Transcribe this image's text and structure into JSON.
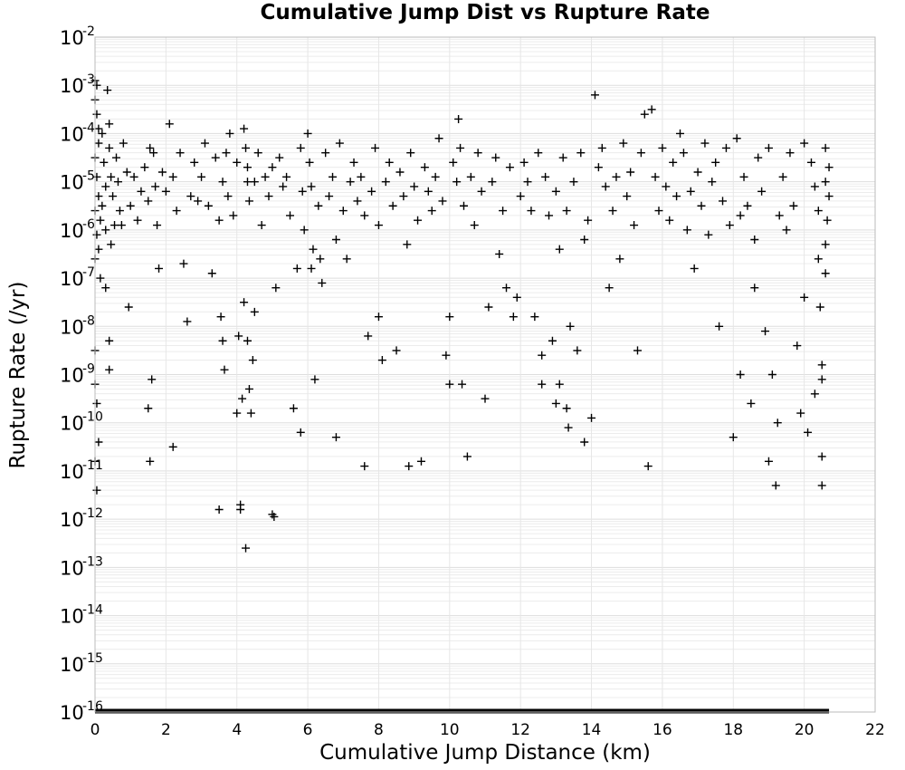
{
  "chart_data": {
    "type": "scatter",
    "title": "Cumulative Jump Dist vs Rupture Rate",
    "xlabel": "Cumulative Jump Distance (km)",
    "ylabel": "Rupture Rate (/yr)",
    "xlim": [
      0,
      22
    ],
    "ylim_log10": [
      -16,
      -2
    ],
    "y_scale": "log",
    "grid": true,
    "marker": "plus",
    "marker_color": "#000000",
    "x_ticks": [
      "0",
      "2",
      "4",
      "6",
      "8",
      "10",
      "12",
      "14",
      "16",
      "18",
      "20",
      "22"
    ],
    "y_ticks": [
      {
        "base": "10",
        "exp": "-2"
      },
      {
        "base": "10",
        "exp": "-3"
      },
      {
        "base": "10",
        "exp": "-4"
      },
      {
        "base": "10",
        "exp": "-5"
      },
      {
        "base": "10",
        "exp": "-6"
      },
      {
        "base": "10",
        "exp": "-7"
      },
      {
        "base": "10",
        "exp": "-8"
      },
      {
        "base": "10",
        "exp": "-9"
      },
      {
        "base": "10",
        "exp": "-10"
      },
      {
        "base": "10",
        "exp": "-11"
      },
      {
        "base": "10",
        "exp": "-12"
      },
      {
        "base": "10",
        "exp": "-13"
      },
      {
        "base": "10",
        "exp": "-14"
      },
      {
        "base": "10",
        "exp": "-15"
      },
      {
        "base": "10",
        "exp": "-16"
      }
    ],
    "floor_band": {
      "y_log10": -16,
      "x_range": [
        0,
        20.7
      ],
      "note": "dense row of points at the minimum rate"
    },
    "points_log10": [
      [
        0.0,
        -2.9
      ],
      [
        0.0,
        -3.3
      ],
      [
        0.05,
        -3.0
      ],
      [
        0.05,
        -3.6
      ],
      [
        0.1,
        -3.9
      ],
      [
        0.1,
        -4.2
      ],
      [
        0.0,
        -4.5
      ],
      [
        0.05,
        -4.9
      ],
      [
        0.1,
        -5.3
      ],
      [
        0.0,
        -5.6
      ],
      [
        0.15,
        -5.8
      ],
      [
        0.05,
        -6.1
      ],
      [
        0.1,
        -6.4
      ],
      [
        0.0,
        -6.6
      ],
      [
        0.2,
        -4.0
      ],
      [
        0.25,
        -4.6
      ],
      [
        0.3,
        -5.1
      ],
      [
        0.2,
        -5.5
      ],
      [
        0.3,
        -6.0
      ],
      [
        0.15,
        -7.0
      ],
      [
        0.0,
        -8.5
      ],
      [
        0.0,
        -9.2
      ],
      [
        0.05,
        -9.6
      ],
      [
        0.1,
        -10.4
      ],
      [
        0.0,
        -10.8
      ],
      [
        0.05,
        -11.4
      ],
      [
        0.35,
        -3.1
      ],
      [
        0.4,
        -3.8
      ],
      [
        0.4,
        -4.3
      ],
      [
        0.45,
        -4.9
      ],
      [
        0.5,
        -5.3
      ],
      [
        0.55,
        -5.9
      ],
      [
        0.45,
        -6.3
      ],
      [
        0.3,
        -7.2
      ],
      [
        0.4,
        -8.3
      ],
      [
        0.4,
        -8.9
      ],
      [
        0.6,
        -4.5
      ],
      [
        0.65,
        -5.0
      ],
      [
        0.7,
        -5.6
      ],
      [
        0.75,
        -5.9
      ],
      [
        0.8,
        -4.2
      ],
      [
        0.9,
        -4.8
      ],
      [
        0.95,
        -7.6
      ],
      [
        1.0,
        -5.5
      ],
      [
        1.1,
        -4.9
      ],
      [
        1.2,
        -5.8
      ],
      [
        1.3,
        -5.2
      ],
      [
        1.4,
        -4.7
      ],
      [
        1.5,
        -5.4
      ],
      [
        1.55,
        -4.3
      ],
      [
        1.6,
        -9.1
      ],
      [
        1.5,
        -9.7
      ],
      [
        1.55,
        -10.8
      ],
      [
        1.65,
        -4.4
      ],
      [
        1.7,
        -5.1
      ],
      [
        1.75,
        -5.9
      ],
      [
        1.8,
        -6.8
      ],
      [
        1.9,
        -4.8
      ],
      [
        2.0,
        -5.2
      ],
      [
        2.1,
        -3.8
      ],
      [
        2.2,
        -4.9
      ],
      [
        2.3,
        -5.6
      ],
      [
        2.4,
        -4.4
      ],
      [
        2.5,
        -6.7
      ],
      [
        2.6,
        -7.9
      ],
      [
        2.7,
        -5.3
      ],
      [
        2.8,
        -4.6
      ],
      [
        2.2,
        -10.5
      ],
      [
        2.9,
        -5.4
      ],
      [
        3.0,
        -4.9
      ],
      [
        3.1,
        -4.2
      ],
      [
        3.2,
        -5.5
      ],
      [
        3.3,
        -6.9
      ],
      [
        3.4,
        -4.5
      ],
      [
        3.5,
        -5.8
      ],
      [
        3.6,
        -5.0
      ],
      [
        3.5,
        -11.8
      ],
      [
        3.55,
        -7.8
      ],
      [
        3.6,
        -8.3
      ],
      [
        3.65,
        -8.9
      ],
      [
        3.7,
        -4.4
      ],
      [
        3.75,
        -5.3
      ],
      [
        3.8,
        -4.0
      ],
      [
        3.9,
        -5.7
      ],
      [
        4.0,
        -4.6
      ],
      [
        4.0,
        -9.8
      ],
      [
        4.05,
        -8.2
      ],
      [
        4.1,
        -11.8
      ],
      [
        4.1,
        -11.7
      ],
      [
        4.15,
        -9.5
      ],
      [
        4.2,
        -3.9
      ],
      [
        4.25,
        -4.3
      ],
      [
        4.3,
        -4.7
      ],
      [
        4.3,
        -5.0
      ],
      [
        4.35,
        -5.4
      ],
      [
        4.2,
        -7.5
      ],
      [
        4.3,
        -8.3
      ],
      [
        4.35,
        -9.3
      ],
      [
        4.4,
        -9.8
      ],
      [
        4.45,
        -8.7
      ],
      [
        4.5,
        -7.7
      ],
      [
        4.25,
        -12.6
      ],
      [
        4.5,
        -5.0
      ],
      [
        4.6,
        -4.4
      ],
      [
        4.7,
        -5.9
      ],
      [
        4.8,
        -4.9
      ],
      [
        4.9,
        -5.3
      ],
      [
        5.0,
        -4.7
      ],
      [
        5.0,
        -11.9
      ],
      [
        5.05,
        -11.95
      ],
      [
        5.1,
        -7.2
      ],
      [
        5.2,
        -4.5
      ],
      [
        5.3,
        -5.1
      ],
      [
        5.4,
        -4.9
      ],
      [
        5.5,
        -5.7
      ],
      [
        5.6,
        -9.7
      ],
      [
        5.7,
        -6.8
      ],
      [
        5.8,
        -4.3
      ],
      [
        5.85,
        -5.2
      ],
      [
        5.8,
        -10.2
      ],
      [
        5.9,
        -6.0
      ],
      [
        6.0,
        -4.0
      ],
      [
        6.05,
        -4.6
      ],
      [
        6.1,
        -5.1
      ],
      [
        6.1,
        -6.8
      ],
      [
        6.15,
        -6.4
      ],
      [
        6.2,
        -9.1
      ],
      [
        6.3,
        -5.5
      ],
      [
        6.35,
        -6.6
      ],
      [
        6.4,
        -7.1
      ],
      [
        6.5,
        -4.4
      ],
      [
        6.6,
        -5.3
      ],
      [
        6.7,
        -4.9
      ],
      [
        6.8,
        -6.2
      ],
      [
        6.8,
        -10.3
      ],
      [
        6.9,
        -4.2
      ],
      [
        7.0,
        -5.6
      ],
      [
        7.1,
        -6.6
      ],
      [
        7.2,
        -5.0
      ],
      [
        7.3,
        -4.6
      ],
      [
        7.4,
        -5.4
      ],
      [
        7.5,
        -4.9
      ],
      [
        7.6,
        -5.7
      ],
      [
        7.6,
        -10.9
      ],
      [
        7.7,
        -8.2
      ],
      [
        7.8,
        -5.2
      ],
      [
        7.9,
        -4.3
      ],
      [
        8.0,
        -5.9
      ],
      [
        8.0,
        -7.8
      ],
      [
        8.1,
        -8.7
      ],
      [
        8.2,
        -5.0
      ],
      [
        8.3,
        -4.6
      ],
      [
        8.4,
        -5.5
      ],
      [
        8.5,
        -8.5
      ],
      [
        8.6,
        -4.8
      ],
      [
        8.7,
        -5.3
      ],
      [
        8.8,
        -6.3
      ],
      [
        8.85,
        -10.9
      ],
      [
        8.9,
        -4.4
      ],
      [
        9.0,
        -5.1
      ],
      [
        9.1,
        -5.8
      ],
      [
        9.2,
        -10.8
      ],
      [
        9.3,
        -4.7
      ],
      [
        9.4,
        -5.2
      ],
      [
        9.5,
        -5.6
      ],
      [
        9.6,
        -4.9
      ],
      [
        9.7,
        -4.1
      ],
      [
        9.8,
        -5.4
      ],
      [
        9.9,
        -8.6
      ],
      [
        10.0,
        -7.8
      ],
      [
        10.0,
        -9.2
      ],
      [
        10.1,
        -4.6
      ],
      [
        10.2,
        -5.0
      ],
      [
        10.25,
        -3.7
      ],
      [
        10.3,
        -4.3
      ],
      [
        10.35,
        -9.2
      ],
      [
        10.4,
        -5.5
      ],
      [
        10.5,
        -10.7
      ],
      [
        10.6,
        -4.9
      ],
      [
        10.7,
        -5.9
      ],
      [
        10.8,
        -4.4
      ],
      [
        10.9,
        -5.2
      ],
      [
        11.0,
        -9.5
      ],
      [
        11.1,
        -7.6
      ],
      [
        11.2,
        -5.0
      ],
      [
        11.3,
        -4.5
      ],
      [
        11.4,
        -6.5
      ],
      [
        11.5,
        -5.6
      ],
      [
        11.6,
        -7.2
      ],
      [
        11.7,
        -4.7
      ],
      [
        11.8,
        -7.8
      ],
      [
        11.9,
        -7.4
      ],
      [
        12.0,
        -5.3
      ],
      [
        12.1,
        -4.6
      ],
      [
        12.2,
        -5.0
      ],
      [
        12.3,
        -5.6
      ],
      [
        12.4,
        -7.8
      ],
      [
        12.5,
        -4.4
      ],
      [
        12.6,
        -8.6
      ],
      [
        12.6,
        -9.2
      ],
      [
        12.7,
        -4.9
      ],
      [
        12.8,
        -5.7
      ],
      [
        12.9,
        -8.3
      ],
      [
        13.0,
        -5.2
      ],
      [
        13.0,
        -9.6
      ],
      [
        13.1,
        -6.4
      ],
      [
        13.1,
        -9.2
      ],
      [
        13.2,
        -4.5
      ],
      [
        13.3,
        -5.6
      ],
      [
        13.3,
        -9.7
      ],
      [
        13.35,
        -10.1
      ],
      [
        13.4,
        -8.0
      ],
      [
        13.5,
        -5.0
      ],
      [
        13.6,
        -8.5
      ],
      [
        13.7,
        -4.4
      ],
      [
        13.8,
        -6.2
      ],
      [
        13.8,
        -10.4
      ],
      [
        13.9,
        -5.8
      ],
      [
        14.0,
        -9.9
      ],
      [
        14.1,
        -3.2
      ],
      [
        14.2,
        -4.7
      ],
      [
        14.3,
        -4.3
      ],
      [
        14.4,
        -5.1
      ],
      [
        14.5,
        -7.2
      ],
      [
        14.6,
        -5.6
      ],
      [
        14.7,
        -4.9
      ],
      [
        14.8,
        -6.6
      ],
      [
        14.9,
        -4.2
      ],
      [
        15.0,
        -5.3
      ],
      [
        15.1,
        -4.8
      ],
      [
        15.2,
        -5.9
      ],
      [
        15.3,
        -8.5
      ],
      [
        15.4,
        -4.4
      ],
      [
        15.5,
        -3.6
      ],
      [
        15.6,
        -10.9
      ],
      [
        15.7,
        -3.5
      ],
      [
        15.8,
        -4.9
      ],
      [
        15.9,
        -5.6
      ],
      [
        16.0,
        -4.3
      ],
      [
        16.1,
        -5.1
      ],
      [
        16.2,
        -5.8
      ],
      [
        16.3,
        -4.6
      ],
      [
        16.4,
        -5.3
      ],
      [
        16.5,
        -4.0
      ],
      [
        16.6,
        -4.4
      ],
      [
        16.7,
        -6.0
      ],
      [
        16.8,
        -5.2
      ],
      [
        16.9,
        -6.8
      ],
      [
        17.0,
        -4.8
      ],
      [
        17.1,
        -5.5
      ],
      [
        17.2,
        -4.2
      ],
      [
        17.3,
        -6.1
      ],
      [
        17.4,
        -5.0
      ],
      [
        17.5,
        -4.6
      ],
      [
        17.6,
        -8.0
      ],
      [
        17.7,
        -5.4
      ],
      [
        17.8,
        -4.3
      ],
      [
        17.9,
        -5.9
      ],
      [
        18.0,
        -10.3
      ],
      [
        18.1,
        -4.1
      ],
      [
        18.2,
        -9.0
      ],
      [
        18.2,
        -5.7
      ],
      [
        18.3,
        -4.9
      ],
      [
        18.4,
        -5.5
      ],
      [
        18.5,
        -9.6
      ],
      [
        18.6,
        -6.2
      ],
      [
        18.6,
        -7.2
      ],
      [
        18.7,
        -4.5
      ],
      [
        18.8,
        -5.2
      ],
      [
        18.9,
        -8.1
      ],
      [
        19.0,
        -4.3
      ],
      [
        19.0,
        -10.8
      ],
      [
        19.1,
        -9.0
      ],
      [
        19.2,
        -11.3
      ],
      [
        19.25,
        -10.0
      ],
      [
        19.3,
        -5.7
      ],
      [
        19.4,
        -4.9
      ],
      [
        19.5,
        -6.0
      ],
      [
        19.6,
        -4.4
      ],
      [
        19.7,
        -5.5
      ],
      [
        19.8,
        -8.4
      ],
      [
        19.9,
        -9.8
      ],
      [
        20.0,
        -4.2
      ],
      [
        20.0,
        -7.4
      ],
      [
        20.1,
        -10.2
      ],
      [
        20.2,
        -4.6
      ],
      [
        20.3,
        -5.1
      ],
      [
        20.3,
        -9.4
      ],
      [
        20.4,
        -5.6
      ],
      [
        20.45,
        -7.6
      ],
      [
        20.5,
        -9.1
      ],
      [
        20.5,
        -10.7
      ],
      [
        20.5,
        -11.3
      ],
      [
        20.6,
        -4.3
      ],
      [
        20.6,
        -5.0
      ],
      [
        20.65,
        -5.8
      ],
      [
        20.6,
        -6.3
      ],
      [
        20.7,
        -4.7
      ],
      [
        20.7,
        -5.3
      ],
      [
        20.5,
        -8.8
      ],
      [
        20.6,
        -6.9
      ],
      [
        20.4,
        -6.6
      ]
    ]
  }
}
